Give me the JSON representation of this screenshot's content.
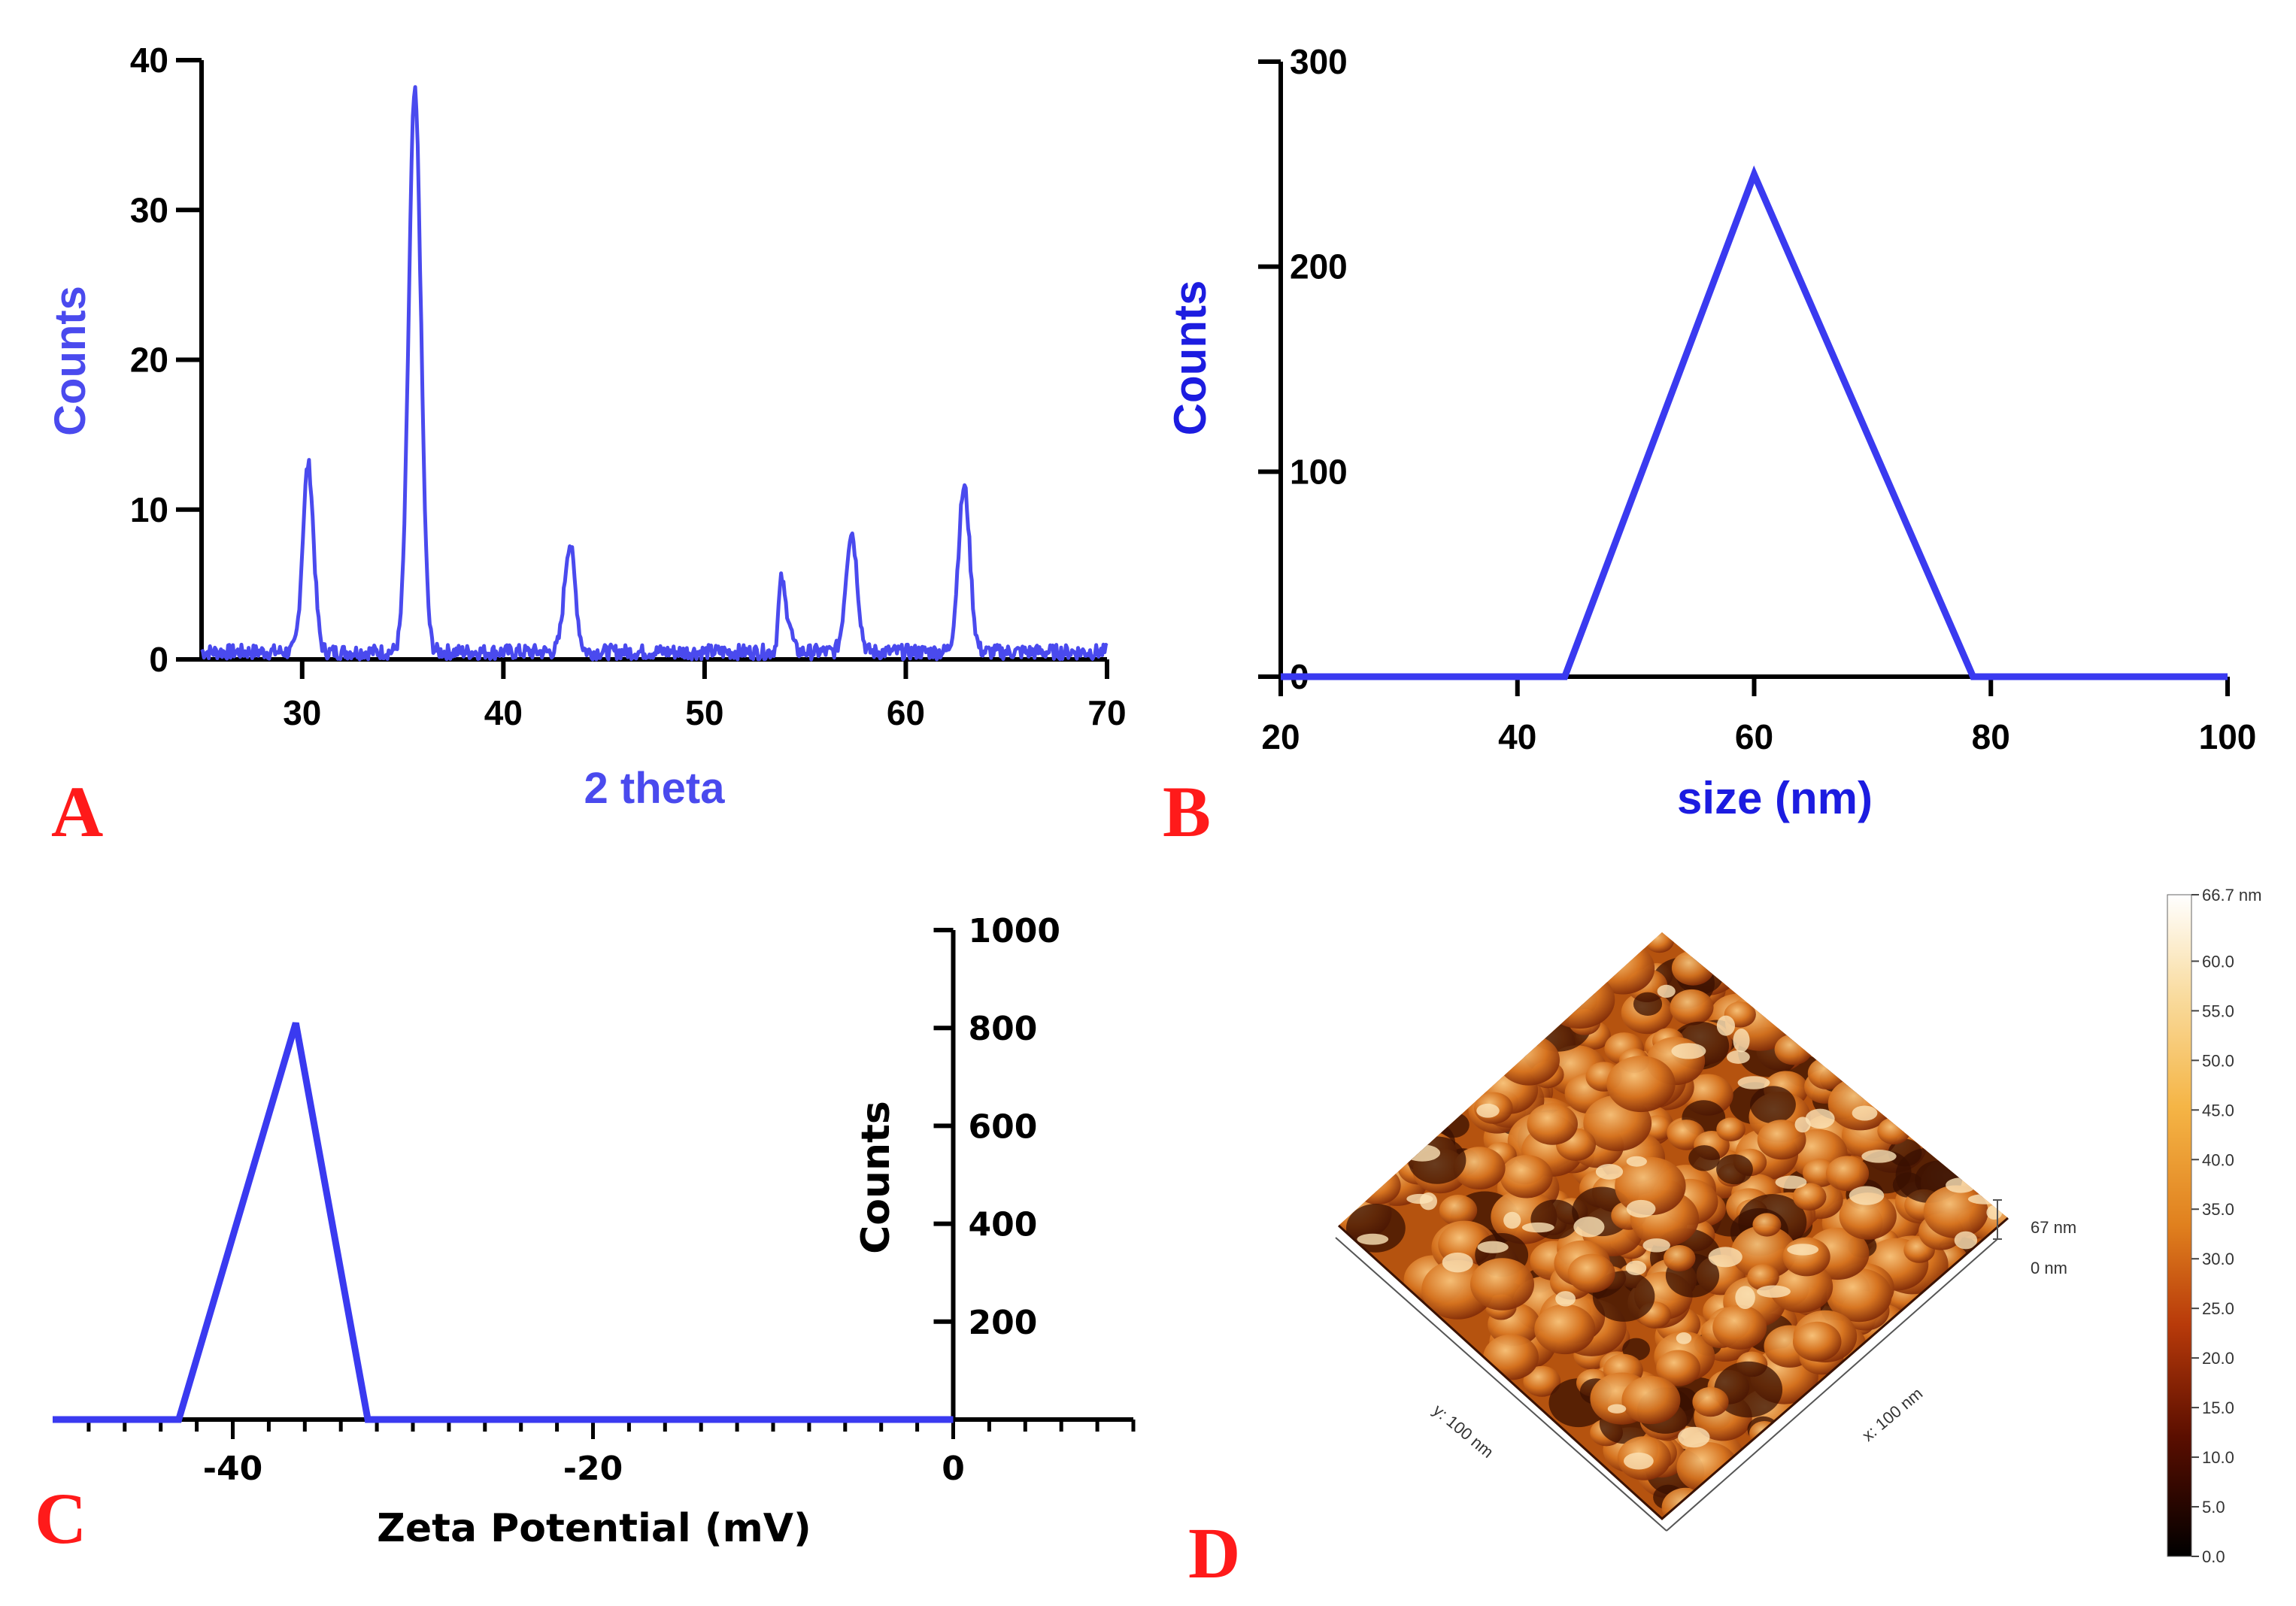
{
  "chart_data": [
    {
      "panel": "A",
      "type": "line",
      "xlabel": "2 theta",
      "ylabel": "Counts",
      "xlim": [
        25,
        70
      ],
      "ylim": [
        0,
        40
      ],
      "xticks": [
        30,
        40,
        50,
        60,
        70
      ],
      "yticks": [
        0,
        10,
        20,
        30,
        40
      ],
      "baseline": 0.5,
      "peaks": [
        {
          "center": 30.3,
          "height": 12.5,
          "width": 0.4
        },
        {
          "center": 35.6,
          "height": 37.3,
          "width": 0.45
        },
        {
          "center": 43.3,
          "height": 7.2,
          "width": 0.4
        },
        {
          "center": 53.8,
          "height": 4.0,
          "width": 0.2
        },
        {
          "center": 54.1,
          "height": 2.4,
          "width": 0.3
        },
        {
          "center": 57.3,
          "height": 8.0,
          "width": 0.42
        },
        {
          "center": 62.9,
          "height": 11.0,
          "width": 0.42
        }
      ],
      "color": "#4a4aee"
    },
    {
      "panel": "B",
      "type": "line",
      "xlabel": "size (nm)",
      "ylabel": "Counts",
      "xlim": [
        20,
        100
      ],
      "ylim": [
        0,
        300
      ],
      "xticks": [
        20,
        40,
        60,
        80,
        100
      ],
      "yticks": [
        0,
        100,
        200,
        300
      ],
      "x": [
        20,
        44,
        60,
        78.5,
        100
      ],
      "y": [
        0,
        0,
        245,
        0,
        0
      ],
      "color": "#3a3af0"
    },
    {
      "panel": "C",
      "type": "line",
      "xlabel": "Zeta Potential (mV)",
      "ylabel": "Counts",
      "xlim": [
        -50,
        10
      ],
      "ylim": [
        0,
        1000
      ],
      "xticks": [
        -40,
        -20,
        0
      ],
      "yticks": [
        200,
        400,
        600,
        800,
        1000
      ],
      "x": [
        -50,
        -43,
        -36.5,
        -32.5,
        -25,
        0
      ],
      "y": [
        0,
        0,
        810,
        0,
        0,
        0
      ],
      "color": "#3a3af0"
    }
  ],
  "panels": {
    "a_label": "A",
    "b_label": "B",
    "c_label": "C",
    "d_label": "D"
  },
  "afm": {
    "x_label": "x: 100 nm",
    "y_label": "y: 100 nm",
    "z_top": "67 nm",
    "z_bottom": "0 nm",
    "colorbar_ticks": [
      "66.7 nm",
      "60.0",
      "55.0",
      "50.0",
      "45.0",
      "40.0",
      "35.0",
      "30.0",
      "25.0",
      "20.0",
      "15.0",
      "10.0",
      "5.0",
      "0.0"
    ]
  }
}
